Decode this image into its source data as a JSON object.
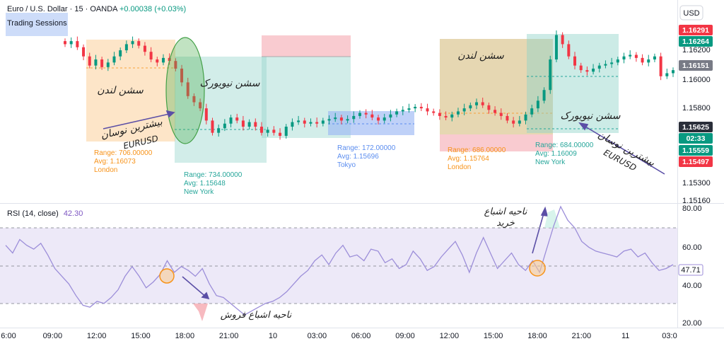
{
  "header": {
    "symbol_line": "Euro / U.S. Dollar · 15 · OANDA",
    "change": "+0.00038 (+0.03%)",
    "indicator": "Trading Sessions"
  },
  "currency_button": "USD",
  "colors": {
    "up": "#089981",
    "down": "#f23645",
    "london": "#f7a23a",
    "newyork": "#26a69a",
    "tokyo": "#5b8def",
    "rsi_line": "#9c8ed9",
    "annotation": "#5b4fa6",
    "circle": "#f7931a",
    "lasso": "#4caf50"
  },
  "chart_data": {
    "type": "candlestick",
    "price_axis": {
      "range": [
        1.1516,
        1.1629
      ],
      "ticks": [
        "1.16200",
        "1.16000",
        "1.15800",
        "1.15300",
        "1.15160"
      ]
    },
    "price_badges": [
      {
        "value": "1.16291",
        "color": "#f23645"
      },
      {
        "value": "1.16264",
        "color": "#089981"
      },
      {
        "value": "1.16151",
        "color": "#787b86"
      },
      {
        "value": "1.15625",
        "color": "#2a2e39"
      },
      {
        "value": "02:33",
        "color": "#089981"
      },
      {
        "value": "1.15559",
        "color": "#089981"
      },
      {
        "value": "1.15497",
        "color": "#f23645"
      }
    ],
    "time_axis": [
      "6:00",
      "09:00",
      "12:00",
      "15:00",
      "18:00",
      "21:00",
      "10",
      "03:00",
      "06:00",
      "09:00",
      "12:00",
      "15:00",
      "18:00",
      "21:00",
      "11",
      "03:0"
    ],
    "close_series": [
      1.162,
      1.1622,
      1.1618,
      1.1612,
      1.1606,
      1.161,
      1.1605,
      1.1608,
      1.1612,
      1.1616,
      1.162,
      1.1622,
      1.1619,
      1.1615,
      1.161,
      1.1608,
      1.1611,
      1.1609,
      1.1604,
      1.1595,
      1.1586,
      1.1582,
      1.1578,
      1.157,
      1.1562,
      1.1565,
      1.1568,
      1.1572,
      1.157,
      1.1566,
      1.1569,
      1.1566,
      1.1562,
      1.1564,
      1.1562,
      1.156,
      1.1566,
      1.1569,
      1.157,
      1.1568,
      1.1569,
      1.1568,
      1.157,
      1.1571,
      1.1572,
      1.157,
      1.1571,
      1.1573,
      1.1575,
      1.1574,
      1.1572,
      1.157,
      1.1572,
      1.1574,
      1.1576,
      1.1577,
      1.1578,
      1.1579,
      1.1578,
      1.1576,
      1.1575,
      1.1573,
      1.1572,
      1.1574,
      1.1576,
      1.1578,
      1.158,
      1.1582,
      1.158,
      1.1577,
      1.1575,
      1.1573,
      1.157,
      1.1568,
      1.157,
      1.1574,
      1.1578,
      1.1583,
      1.159,
      1.161,
      1.1626,
      1.162,
      1.1612,
      1.1606,
      1.1603,
      1.1602,
      1.1604,
      1.1606,
      1.1607,
      1.1608,
      1.161,
      1.1612,
      1.1613,
      1.1611,
      1.1608,
      1.161,
      1.1612,
      1.1599,
      1.1601,
      1.1603
    ],
    "sessions": [
      {
        "name": "London",
        "range": "Range: 706.00000",
        "avg": "Avg: 1.16073",
        "label": "London"
      },
      {
        "name": "New York",
        "range": "Range: 734.00000",
        "avg": "Avg: 1.15648",
        "label": "New York"
      },
      {
        "name": "Tokyo",
        "range": "Range: 172.00000",
        "avg": "Avg: 1.15696",
        "label": "Tokyo"
      },
      {
        "name": "London",
        "range": "Range: 686.00000",
        "avg": "Avg: 1.15764",
        "label": "London"
      },
      {
        "name": "New York",
        "range": "Range: 684.00000",
        "avg": "Avg: 1.16009",
        "label": "New York"
      }
    ],
    "rsi": {
      "label": "RSI (14, close)",
      "current": "42.30",
      "current_badge": "47.71",
      "range": [
        20,
        80
      ],
      "ticks": [
        "80.00",
        "60.00",
        "40.00",
        "20.00"
      ],
      "values": [
        60,
        56,
        63,
        60,
        58,
        61,
        55,
        48,
        44,
        40,
        34,
        29,
        28,
        31,
        30,
        33,
        37,
        44,
        49,
        44,
        38,
        41,
        45,
        52,
        46,
        49,
        47,
        44,
        48,
        40,
        34,
        33,
        30,
        27,
        24,
        26,
        28,
        30,
        31,
        33,
        36,
        40,
        44,
        47,
        52,
        55,
        50,
        56,
        60,
        54,
        55,
        52,
        58,
        57,
        51,
        53,
        48,
        50,
        57,
        53,
        47,
        49,
        54,
        58,
        62,
        55,
        46,
        56,
        64,
        56,
        48,
        52,
        56,
        50,
        47,
        52,
        46,
        58,
        70,
        80,
        73,
        69,
        62,
        59,
        57,
        56,
        55,
        54,
        57,
        58,
        54,
        56,
        51,
        47,
        48,
        50
      ]
    }
  },
  "annotations": {
    "london_1": "سشن لندن",
    "newyork_1": "سشن نیویورک",
    "london_2": "سشن لندن",
    "newyork_2": "سشن نیویورک",
    "max_vol_1a": "بیشترین نوسان",
    "max_vol_1b": "EURUSD",
    "max_vol_2a": "بیشترین نوسان",
    "max_vol_2b": "EURUSD",
    "overbought_a": "ناحیه اشباع",
    "overbought_b": "خرید",
    "oversold": "ناحیه اشباع فروش"
  }
}
